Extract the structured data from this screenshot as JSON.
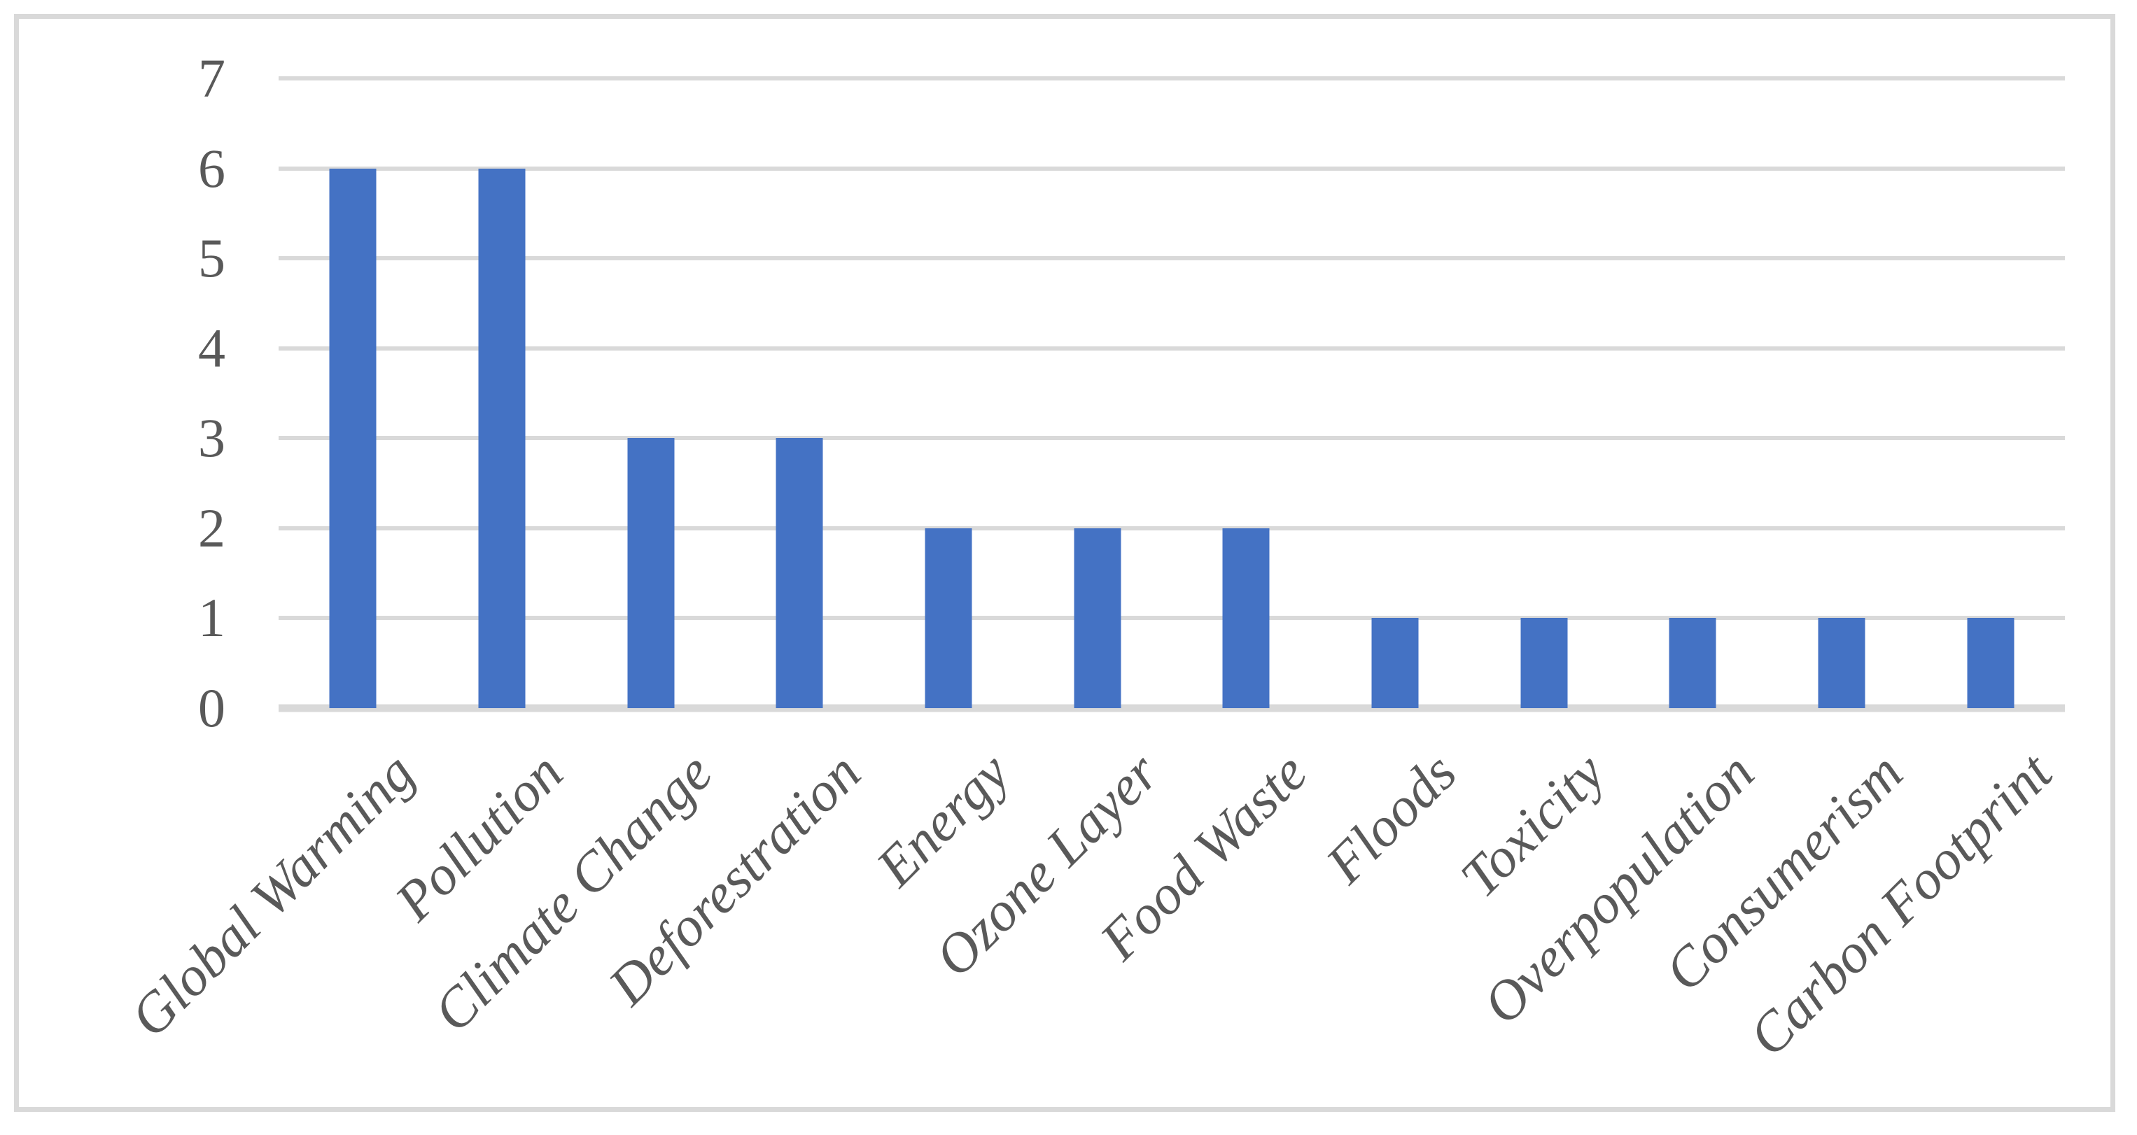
{
  "chart_data": {
    "type": "bar",
    "categories": [
      "Global Warming",
      "Pollution",
      "Climate Change",
      "Deforestration",
      "Energy",
      "Ozone Layer",
      "Food Waste",
      "Floods",
      "Toxicity",
      "Overpopulation",
      "Consumerism",
      "Carbon Footprint"
    ],
    "values": [
      6,
      6,
      3,
      3,
      2,
      2,
      2,
      1,
      1,
      1,
      1,
      1
    ],
    "title": "",
    "xlabel": "",
    "ylabel": "",
    "ylim": [
      0,
      7
    ],
    "yticks": [
      0,
      1,
      2,
      3,
      4,
      5,
      6,
      7
    ],
    "grid": true,
    "legend": false,
    "colors": {
      "bar": "#4472C4",
      "gridline": "#D9D9D9",
      "axis_text": "#595959",
      "frame_border": "#D9D9D9",
      "background": "#FFFFFF"
    }
  }
}
